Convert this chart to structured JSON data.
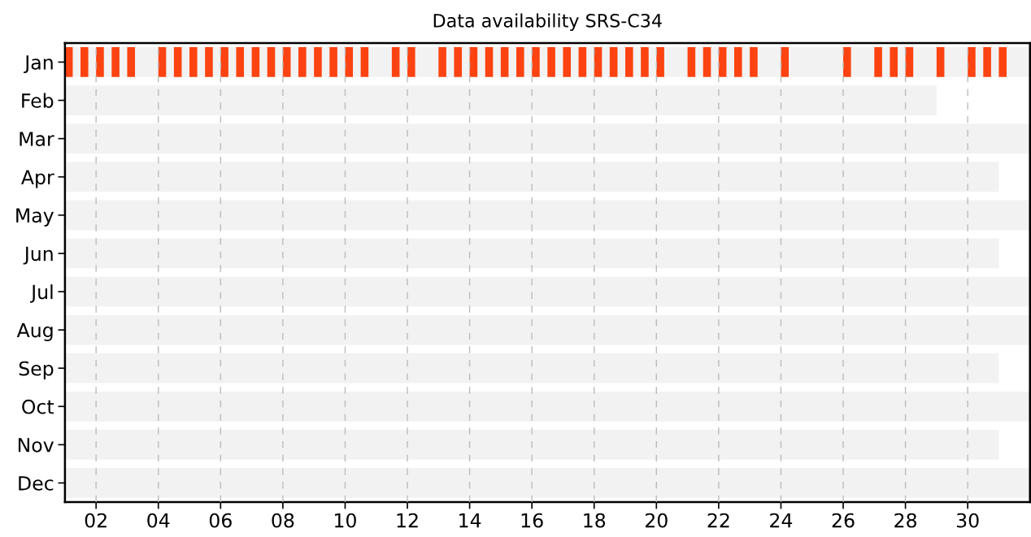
{
  "chart_data": {
    "type": "bar",
    "orientation": "horizontal",
    "title": "Data availability SRS-C34",
    "categories": [
      "Jan",
      "Feb",
      "Mar",
      "Apr",
      "May",
      "Jun",
      "Jul",
      "Aug",
      "Sep",
      "Oct",
      "Nov",
      "Dec"
    ],
    "xlim": [
      1,
      32
    ],
    "xticks": [
      {
        "value": 2,
        "label": "02"
      },
      {
        "value": 4,
        "label": "04"
      },
      {
        "value": 6,
        "label": "06"
      },
      {
        "value": 8,
        "label": "08"
      },
      {
        "value": 10,
        "label": "10"
      },
      {
        "value": 12,
        "label": "12"
      },
      {
        "value": 14,
        "label": "14"
      },
      {
        "value": 16,
        "label": "16"
      },
      {
        "value": 18,
        "label": "18"
      },
      {
        "value": 20,
        "label": "20"
      },
      {
        "value": 22,
        "label": "22"
      },
      {
        "value": 24,
        "label": "24"
      },
      {
        "value": 26,
        "label": "26"
      },
      {
        "value": 28,
        "label": "28"
      },
      {
        "value": 30,
        "label": "30"
      }
    ],
    "grid": "x",
    "series": [
      {
        "color": "#f2f2f2",
        "base": [
          1,
          1,
          1,
          1,
          1,
          1,
          1,
          1,
          1,
          1,
          1,
          1
        ],
        "values": [
          31,
          28,
          31,
          30,
          31,
          30,
          31,
          31,
          30,
          31,
          30,
          31
        ]
      },
      {
        "color": "#fc4311",
        "base": [
          1.0,
          null,
          null,
          null,
          null,
          null,
          null,
          null,
          null,
          null,
          null,
          null
        ],
        "values": [
          0.25,
          null,
          null,
          null,
          null,
          null,
          null,
          null,
          null,
          null,
          null,
          null
        ]
      },
      {
        "color": "#fc4311",
        "base": [
          1.5,
          null,
          null,
          null,
          null,
          null,
          null,
          null,
          null,
          null,
          null,
          null
        ],
        "values": [
          0.25,
          null,
          null,
          null,
          null,
          null,
          null,
          null,
          null,
          null,
          null,
          null
        ]
      },
      {
        "color": "#fc4311",
        "base": [
          2.0,
          null,
          null,
          null,
          null,
          null,
          null,
          null,
          null,
          null,
          null,
          null
        ],
        "values": [
          0.25,
          null,
          null,
          null,
          null,
          null,
          null,
          null,
          null,
          null,
          null,
          null
        ]
      },
      {
        "color": "#fc4311",
        "base": [
          2.5,
          null,
          null,
          null,
          null,
          null,
          null,
          null,
          null,
          null,
          null,
          null
        ],
        "values": [
          0.25,
          null,
          null,
          null,
          null,
          null,
          null,
          null,
          null,
          null,
          null,
          null
        ]
      },
      {
        "color": "#fc4311",
        "base": [
          3.0,
          null,
          null,
          null,
          null,
          null,
          null,
          null,
          null,
          null,
          null,
          null
        ],
        "values": [
          0.25,
          null,
          null,
          null,
          null,
          null,
          null,
          null,
          null,
          null,
          null,
          null
        ]
      },
      {
        "color": "#fc4311",
        "base": [
          4.0,
          null,
          null,
          null,
          null,
          null,
          null,
          null,
          null,
          null,
          null,
          null
        ],
        "values": [
          0.25,
          null,
          null,
          null,
          null,
          null,
          null,
          null,
          null,
          null,
          null,
          null
        ]
      },
      {
        "color": "#fc4311",
        "base": [
          4.5,
          null,
          null,
          null,
          null,
          null,
          null,
          null,
          null,
          null,
          null,
          null
        ],
        "values": [
          0.25,
          null,
          null,
          null,
          null,
          null,
          null,
          null,
          null,
          null,
          null,
          null
        ]
      },
      {
        "color": "#fc4311",
        "base": [
          5.0,
          null,
          null,
          null,
          null,
          null,
          null,
          null,
          null,
          null,
          null,
          null
        ],
        "values": [
          0.25,
          null,
          null,
          null,
          null,
          null,
          null,
          null,
          null,
          null,
          null,
          null
        ]
      },
      {
        "color": "#fc4311",
        "base": [
          5.5,
          null,
          null,
          null,
          null,
          null,
          null,
          null,
          null,
          null,
          null,
          null
        ],
        "values": [
          0.25,
          null,
          null,
          null,
          null,
          null,
          null,
          null,
          null,
          null,
          null,
          null
        ]
      },
      {
        "color": "#fc4311",
        "base": [
          6.0,
          null,
          null,
          null,
          null,
          null,
          null,
          null,
          null,
          null,
          null,
          null
        ],
        "values": [
          0.25,
          null,
          null,
          null,
          null,
          null,
          null,
          null,
          null,
          null,
          null,
          null
        ]
      },
      {
        "color": "#fc4311",
        "base": [
          6.5,
          null,
          null,
          null,
          null,
          null,
          null,
          null,
          null,
          null,
          null,
          null
        ],
        "values": [
          0.25,
          null,
          null,
          null,
          null,
          null,
          null,
          null,
          null,
          null,
          null,
          null
        ]
      },
      {
        "color": "#fc4311",
        "base": [
          7.0,
          null,
          null,
          null,
          null,
          null,
          null,
          null,
          null,
          null,
          null,
          null
        ],
        "values": [
          0.25,
          null,
          null,
          null,
          null,
          null,
          null,
          null,
          null,
          null,
          null,
          null
        ]
      },
      {
        "color": "#fc4311",
        "base": [
          7.5,
          null,
          null,
          null,
          null,
          null,
          null,
          null,
          null,
          null,
          null,
          null
        ],
        "values": [
          0.25,
          null,
          null,
          null,
          null,
          null,
          null,
          null,
          null,
          null,
          null,
          null
        ]
      },
      {
        "color": "#fc4311",
        "base": [
          8.0,
          null,
          null,
          null,
          null,
          null,
          null,
          null,
          null,
          null,
          null,
          null
        ],
        "values": [
          0.25,
          null,
          null,
          null,
          null,
          null,
          null,
          null,
          null,
          null,
          null,
          null
        ]
      },
      {
        "color": "#fc4311",
        "base": [
          8.5,
          null,
          null,
          null,
          null,
          null,
          null,
          null,
          null,
          null,
          null,
          null
        ],
        "values": [
          0.25,
          null,
          null,
          null,
          null,
          null,
          null,
          null,
          null,
          null,
          null,
          null
        ]
      },
      {
        "color": "#fc4311",
        "base": [
          9.0,
          null,
          null,
          null,
          null,
          null,
          null,
          null,
          null,
          null,
          null,
          null
        ],
        "values": [
          0.25,
          null,
          null,
          null,
          null,
          null,
          null,
          null,
          null,
          null,
          null,
          null
        ]
      },
      {
        "color": "#fc4311",
        "base": [
          9.5,
          null,
          null,
          null,
          null,
          null,
          null,
          null,
          null,
          null,
          null,
          null
        ],
        "values": [
          0.25,
          null,
          null,
          null,
          null,
          null,
          null,
          null,
          null,
          null,
          null,
          null
        ]
      },
      {
        "color": "#fc4311",
        "base": [
          10.0,
          null,
          null,
          null,
          null,
          null,
          null,
          null,
          null,
          null,
          null,
          null
        ],
        "values": [
          0.25,
          null,
          null,
          null,
          null,
          null,
          null,
          null,
          null,
          null,
          null,
          null
        ]
      },
      {
        "color": "#fc4311",
        "base": [
          10.5,
          null,
          null,
          null,
          null,
          null,
          null,
          null,
          null,
          null,
          null,
          null
        ],
        "values": [
          0.25,
          null,
          null,
          null,
          null,
          null,
          null,
          null,
          null,
          null,
          null,
          null
        ]
      },
      {
        "color": "#fc4311",
        "base": [
          11.5,
          null,
          null,
          null,
          null,
          null,
          null,
          null,
          null,
          null,
          null,
          null
        ],
        "values": [
          0.25,
          null,
          null,
          null,
          null,
          null,
          null,
          null,
          null,
          null,
          null,
          null
        ]
      },
      {
        "color": "#fc4311",
        "base": [
          12.0,
          null,
          null,
          null,
          null,
          null,
          null,
          null,
          null,
          null,
          null,
          null
        ],
        "values": [
          0.25,
          null,
          null,
          null,
          null,
          null,
          null,
          null,
          null,
          null,
          null,
          null
        ]
      },
      {
        "color": "#fc4311",
        "base": [
          13.0,
          null,
          null,
          null,
          null,
          null,
          null,
          null,
          null,
          null,
          null,
          null
        ],
        "values": [
          0.25,
          null,
          null,
          null,
          null,
          null,
          null,
          null,
          null,
          null,
          null,
          null
        ]
      },
      {
        "color": "#fc4311",
        "base": [
          13.5,
          null,
          null,
          null,
          null,
          null,
          null,
          null,
          null,
          null,
          null,
          null
        ],
        "values": [
          0.25,
          null,
          null,
          null,
          null,
          null,
          null,
          null,
          null,
          null,
          null,
          null
        ]
      },
      {
        "color": "#fc4311",
        "base": [
          14.0,
          null,
          null,
          null,
          null,
          null,
          null,
          null,
          null,
          null,
          null,
          null
        ],
        "values": [
          0.25,
          null,
          null,
          null,
          null,
          null,
          null,
          null,
          null,
          null,
          null,
          null
        ]
      },
      {
        "color": "#fc4311",
        "base": [
          14.5,
          null,
          null,
          null,
          null,
          null,
          null,
          null,
          null,
          null,
          null,
          null
        ],
        "values": [
          0.25,
          null,
          null,
          null,
          null,
          null,
          null,
          null,
          null,
          null,
          null,
          null
        ]
      },
      {
        "color": "#fc4311",
        "base": [
          15.0,
          null,
          null,
          null,
          null,
          null,
          null,
          null,
          null,
          null,
          null,
          null
        ],
        "values": [
          0.25,
          null,
          null,
          null,
          null,
          null,
          null,
          null,
          null,
          null,
          null,
          null
        ]
      },
      {
        "color": "#fc4311",
        "base": [
          15.5,
          null,
          null,
          null,
          null,
          null,
          null,
          null,
          null,
          null,
          null,
          null
        ],
        "values": [
          0.25,
          null,
          null,
          null,
          null,
          null,
          null,
          null,
          null,
          null,
          null,
          null
        ]
      },
      {
        "color": "#fc4311",
        "base": [
          16.0,
          null,
          null,
          null,
          null,
          null,
          null,
          null,
          null,
          null,
          null,
          null
        ],
        "values": [
          0.25,
          null,
          null,
          null,
          null,
          null,
          null,
          null,
          null,
          null,
          null,
          null
        ]
      },
      {
        "color": "#fc4311",
        "base": [
          16.5,
          null,
          null,
          null,
          null,
          null,
          null,
          null,
          null,
          null,
          null,
          null
        ],
        "values": [
          0.25,
          null,
          null,
          null,
          null,
          null,
          null,
          null,
          null,
          null,
          null,
          null
        ]
      },
      {
        "color": "#fc4311",
        "base": [
          17.0,
          null,
          null,
          null,
          null,
          null,
          null,
          null,
          null,
          null,
          null,
          null
        ],
        "values": [
          0.25,
          null,
          null,
          null,
          null,
          null,
          null,
          null,
          null,
          null,
          null,
          null
        ]
      },
      {
        "color": "#fc4311",
        "base": [
          17.5,
          null,
          null,
          null,
          null,
          null,
          null,
          null,
          null,
          null,
          null,
          null
        ],
        "values": [
          0.25,
          null,
          null,
          null,
          null,
          null,
          null,
          null,
          null,
          null,
          null,
          null
        ]
      },
      {
        "color": "#fc4311",
        "base": [
          18.0,
          null,
          null,
          null,
          null,
          null,
          null,
          null,
          null,
          null,
          null,
          null
        ],
        "values": [
          0.25,
          null,
          null,
          null,
          null,
          null,
          null,
          null,
          null,
          null,
          null,
          null
        ]
      },
      {
        "color": "#fc4311",
        "base": [
          18.5,
          null,
          null,
          null,
          null,
          null,
          null,
          null,
          null,
          null,
          null,
          null
        ],
        "values": [
          0.25,
          null,
          null,
          null,
          null,
          null,
          null,
          null,
          null,
          null,
          null,
          null
        ]
      },
      {
        "color": "#fc4311",
        "base": [
          19.0,
          null,
          null,
          null,
          null,
          null,
          null,
          null,
          null,
          null,
          null,
          null
        ],
        "values": [
          0.25,
          null,
          null,
          null,
          null,
          null,
          null,
          null,
          null,
          null,
          null,
          null
        ]
      },
      {
        "color": "#fc4311",
        "base": [
          19.5,
          null,
          null,
          null,
          null,
          null,
          null,
          null,
          null,
          null,
          null,
          null
        ],
        "values": [
          0.25,
          null,
          null,
          null,
          null,
          null,
          null,
          null,
          null,
          null,
          null,
          null
        ]
      },
      {
        "color": "#fc4311",
        "base": [
          20.0,
          null,
          null,
          null,
          null,
          null,
          null,
          null,
          null,
          null,
          null,
          null
        ],
        "values": [
          0.25,
          null,
          null,
          null,
          null,
          null,
          null,
          null,
          null,
          null,
          null,
          null
        ]
      },
      {
        "color": "#fc4311",
        "base": [
          21.0,
          null,
          null,
          null,
          null,
          null,
          null,
          null,
          null,
          null,
          null,
          null
        ],
        "values": [
          0.25,
          null,
          null,
          null,
          null,
          null,
          null,
          null,
          null,
          null,
          null,
          null
        ]
      },
      {
        "color": "#fc4311",
        "base": [
          21.5,
          null,
          null,
          null,
          null,
          null,
          null,
          null,
          null,
          null,
          null,
          null
        ],
        "values": [
          0.25,
          null,
          null,
          null,
          null,
          null,
          null,
          null,
          null,
          null,
          null,
          null
        ]
      },
      {
        "color": "#fc4311",
        "base": [
          22.0,
          null,
          null,
          null,
          null,
          null,
          null,
          null,
          null,
          null,
          null,
          null
        ],
        "values": [
          0.25,
          null,
          null,
          null,
          null,
          null,
          null,
          null,
          null,
          null,
          null,
          null
        ]
      },
      {
        "color": "#fc4311",
        "base": [
          22.5,
          null,
          null,
          null,
          null,
          null,
          null,
          null,
          null,
          null,
          null,
          null
        ],
        "values": [
          0.25,
          null,
          null,
          null,
          null,
          null,
          null,
          null,
          null,
          null,
          null,
          null
        ]
      },
      {
        "color": "#fc4311",
        "base": [
          23.0,
          null,
          null,
          null,
          null,
          null,
          null,
          null,
          null,
          null,
          null,
          null
        ],
        "values": [
          0.25,
          null,
          null,
          null,
          null,
          null,
          null,
          null,
          null,
          null,
          null,
          null
        ]
      },
      {
        "color": "#fc4311",
        "base": [
          24.0,
          null,
          null,
          null,
          null,
          null,
          null,
          null,
          null,
          null,
          null,
          null
        ],
        "values": [
          0.25,
          null,
          null,
          null,
          null,
          null,
          null,
          null,
          null,
          null,
          null,
          null
        ]
      },
      {
        "color": "#fc4311",
        "base": [
          26.0,
          null,
          null,
          null,
          null,
          null,
          null,
          null,
          null,
          null,
          null,
          null
        ],
        "values": [
          0.25,
          null,
          null,
          null,
          null,
          null,
          null,
          null,
          null,
          null,
          null,
          null
        ]
      },
      {
        "color": "#fc4311",
        "base": [
          27.0,
          null,
          null,
          null,
          null,
          null,
          null,
          null,
          null,
          null,
          null,
          null
        ],
        "values": [
          0.25,
          null,
          null,
          null,
          null,
          null,
          null,
          null,
          null,
          null,
          null,
          null
        ]
      },
      {
        "color": "#fc4311",
        "base": [
          27.5,
          null,
          null,
          null,
          null,
          null,
          null,
          null,
          null,
          null,
          null,
          null
        ],
        "values": [
          0.25,
          null,
          null,
          null,
          null,
          null,
          null,
          null,
          null,
          null,
          null,
          null
        ]
      },
      {
        "color": "#fc4311",
        "base": [
          28.0,
          null,
          null,
          null,
          null,
          null,
          null,
          null,
          null,
          null,
          null,
          null
        ],
        "values": [
          0.25,
          null,
          null,
          null,
          null,
          null,
          null,
          null,
          null,
          null,
          null,
          null
        ]
      },
      {
        "color": "#fc4311",
        "base": [
          29.0,
          null,
          null,
          null,
          null,
          null,
          null,
          null,
          null,
          null,
          null,
          null
        ],
        "values": [
          0.25,
          null,
          null,
          null,
          null,
          null,
          null,
          null,
          null,
          null,
          null,
          null
        ]
      },
      {
        "color": "#fc4311",
        "base": [
          30.0,
          null,
          null,
          null,
          null,
          null,
          null,
          null,
          null,
          null,
          null,
          null
        ],
        "values": [
          0.25,
          null,
          null,
          null,
          null,
          null,
          null,
          null,
          null,
          null,
          null,
          null
        ]
      },
      {
        "color": "#fc4311",
        "base": [
          30.5,
          null,
          null,
          null,
          null,
          null,
          null,
          null,
          null,
          null,
          null,
          null
        ],
        "values": [
          0.25,
          null,
          null,
          null,
          null,
          null,
          null,
          null,
          null,
          null,
          null,
          null
        ]
      },
      {
        "color": "#fc4311",
        "base": [
          31.0,
          null,
          null,
          null,
          null,
          null,
          null,
          null,
          null,
          null,
          null,
          null
        ],
        "values": [
          0.25,
          null,
          null,
          null,
          null,
          null,
          null,
          null,
          null,
          null,
          null,
          null
        ]
      }
    ]
  }
}
